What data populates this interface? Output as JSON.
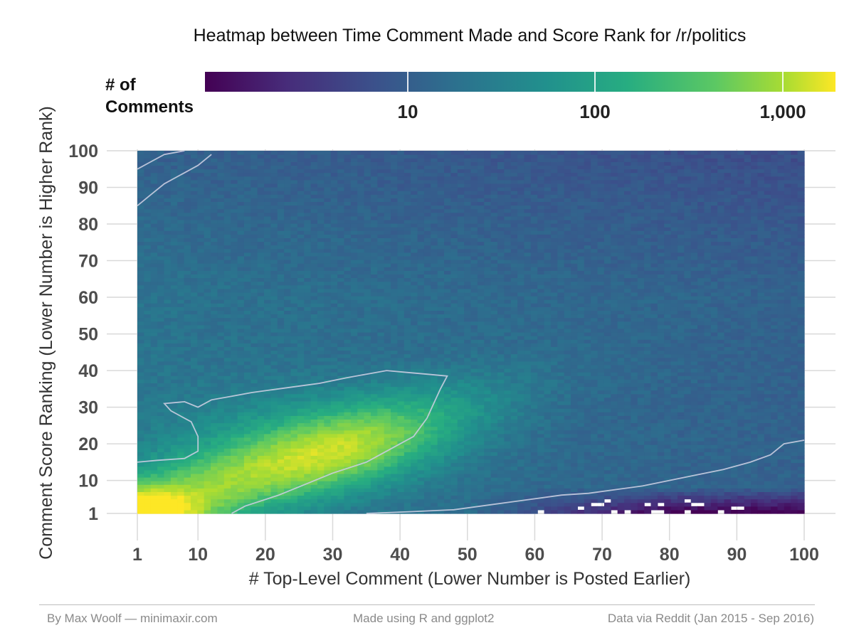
{
  "chart_data": {
    "type": "heatmap",
    "title": "Heatmap between Time Comment Made and Score Rank for /r/politics",
    "xlabel": "# Top-Level Comment (Lower Number is Posted Earlier)",
    "ylabel": "Comment Score Ranking (Lower Number is Higher Rank)",
    "xlim": [
      1,
      100
    ],
    "ylim": [
      1,
      100
    ],
    "x_ticks": [
      1,
      10,
      20,
      30,
      40,
      50,
      60,
      70,
      80,
      90,
      100
    ],
    "y_ticks": [
      1,
      10,
      20,
      30,
      40,
      50,
      60,
      70,
      80,
      90,
      100
    ],
    "fill_label": "# of Comments",
    "fill_scale": "log10",
    "fill_ticks": [
      "10",
      "100",
      "1,000"
    ],
    "fill_range": [
      1,
      2000
    ],
    "colormap": "viridis",
    "grid": true,
    "legend_position": "top",
    "contours": true
  },
  "footer": {
    "left": "By Max Woolf — minimaxir.com",
    "center": "Made using R and ggplot2",
    "right": "Data via Reddit (Jan 2015 - Sep 2016)"
  },
  "legend": {
    "title_line1": "# of",
    "title_line2": "Comments"
  }
}
